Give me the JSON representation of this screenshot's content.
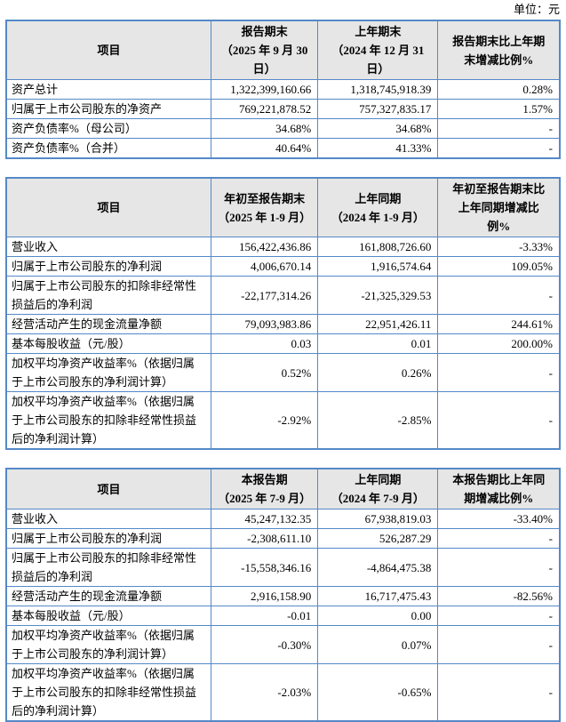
{
  "unit_label": "单位：元",
  "colors": {
    "border": "#5589c8",
    "header_bg": "#e6e6e6"
  },
  "tables": [
    {
      "name": "period-end-balance-table",
      "headers": [
        "项目",
        "报告期末\n（2025 年 9 月 30\n日）",
        "上年期末\n（2024 年 12 月 31\n日）",
        "报告期末比上年期\n末增减比例%"
      ],
      "rows": [
        [
          "资产总计",
          "1,322,399,160.66",
          "1,318,745,918.39",
          "0.28%"
        ],
        [
          "归属于上市公司股东的净资产",
          "769,221,878.52",
          "757,327,835.17",
          "1.57%"
        ],
        [
          "资产负债率%（母公司）",
          "34.68%",
          "34.68%",
          "-"
        ],
        [
          "资产负债率%（合并）",
          "40.64%",
          "41.33%",
          "-"
        ]
      ]
    },
    {
      "name": "year-to-date-results-table",
      "headers": [
        "项目",
        "年初至报告期末\n（2025 年 1-9 月）",
        "上年同期\n（2024 年 1-9 月）",
        "年初至报告期末比\n上年同期增减比\n例%"
      ],
      "rows": [
        [
          "营业收入",
          "156,422,436.86",
          "161,808,726.60",
          "-3.33%"
        ],
        [
          "归属于上市公司股东的净利润",
          "4,006,670.14",
          "1,916,574.64",
          "109.05%"
        ],
        [
          "归属于上市公司股东的扣除非经常性损益后的净利润",
          "-22,177,314.26",
          "-21,325,329.53",
          "-"
        ],
        [
          "经营活动产生的现金流量净额",
          "79,093,983.86",
          "22,951,426.11",
          "244.61%"
        ],
        [
          "基本每股收益（元/股）",
          "0.03",
          "0.01",
          "200.00%"
        ],
        [
          "加权平均净资产收益率%（依据归属于上市公司股东的净利润计算）",
          "0.52%",
          "0.26%",
          "-"
        ],
        [
          "加权平均净资产收益率%（依据归属于上市公司股东的扣除非经常性损益后的净利润计算）",
          "-2.92%",
          "-2.85%",
          "-"
        ]
      ]
    },
    {
      "name": "current-quarter-results-table",
      "headers": [
        "项目",
        "本报告期\n（2025 年 7-9 月）",
        "上年同期\n（2024 年 7-9 月）",
        "本报告期比上年同\n期增减比例%"
      ],
      "rows": [
        [
          "营业收入",
          "45,247,132.35",
          "67,938,819.03",
          "-33.40%"
        ],
        [
          "归属于上市公司股东的净利润",
          "-2,308,611.10",
          "526,287.29",
          "-"
        ],
        [
          "归属于上市公司股东的扣除非经常性损益后的净利润",
          "-15,558,346.16",
          "-4,864,475.38",
          "-"
        ],
        [
          "经营活动产生的现金流量净额",
          "2,916,158.90",
          "16,717,475.43",
          "-82.56%"
        ],
        [
          "基本每股收益（元/股）",
          "-0.01",
          "0.00",
          "-"
        ],
        [
          "加权平均净资产收益率%（依据归属于上市公司股东的净利润计算）",
          "-0.30%",
          "0.07%",
          "-"
        ],
        [
          "加权平均净资产收益率%（依据归属于上市公司股东的扣除非经常性损益后的净利润计算）",
          "-2.03%",
          "-0.65%",
          "-"
        ]
      ]
    }
  ]
}
